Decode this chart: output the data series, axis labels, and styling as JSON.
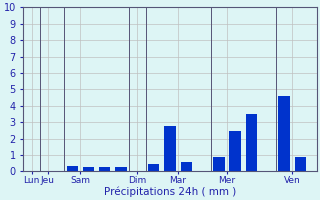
{
  "bars": [
    {
      "x": 1,
      "height": 0.0
    },
    {
      "x": 2,
      "height": 0.0
    },
    {
      "x": 3,
      "height": 0.35
    },
    {
      "x": 4,
      "height": 0.3
    },
    {
      "x": 5,
      "height": 0.25
    },
    {
      "x": 6,
      "height": 0.28
    },
    {
      "x": 7,
      "height": 0.0
    },
    {
      "x": 8,
      "height": 0.45
    },
    {
      "x": 9,
      "height": 2.8
    },
    {
      "x": 10,
      "height": 0.6
    },
    {
      "x": 11,
      "height": 0.0
    },
    {
      "x": 12,
      "height": 0.9
    },
    {
      "x": 13,
      "height": 2.45
    },
    {
      "x": 14,
      "height": 3.5
    },
    {
      "x": 15,
      "height": 0.0
    },
    {
      "x": 16,
      "height": 4.6
    },
    {
      "x": 17,
      "height": 0.9
    }
  ],
  "day_labels": [
    "Lun",
    "Jeu",
    "Sam",
    "Dim",
    "Mar",
    "Mer",
    "Ven"
  ],
  "day_tick_positions": [
    0.5,
    1.5,
    3.5,
    7.0,
    9.5,
    12.5,
    16.5
  ],
  "separator_positions": [
    1.0,
    2.5,
    6.5,
    7.5,
    11.5,
    15.5
  ],
  "bar_color": "#0033cc",
  "background_color": "#ddf5f5",
  "grid_color": "#c0c0c0",
  "border_color": "#555577",
  "xlabel": "Précipitations 24h ( mm )",
  "xlabel_color": "#2222aa",
  "tick_color": "#2222aa",
  "ylim": [
    0,
    10
  ],
  "xlim": [
    0,
    18
  ],
  "yticks": [
    0,
    1,
    2,
    3,
    4,
    5,
    6,
    7,
    8,
    9,
    10
  ],
  "bar_width": 0.7
}
